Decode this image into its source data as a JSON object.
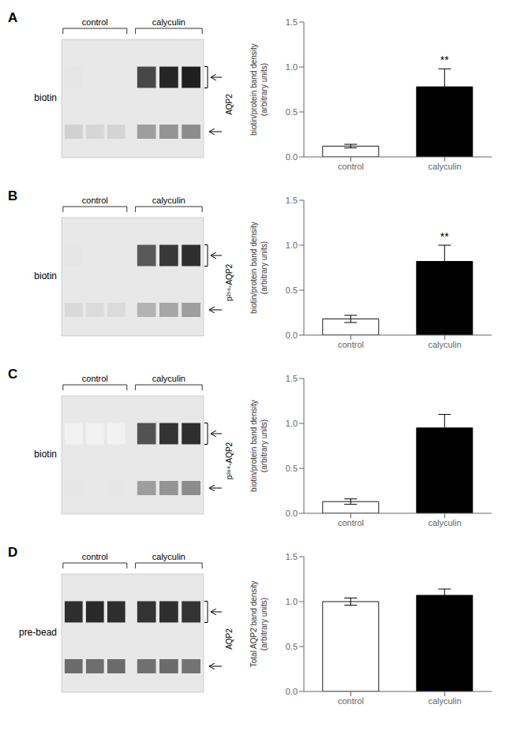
{
  "chart_data": [
    {
      "type": "bar",
      "title": "A",
      "ylabel": "biotin/protein band density\n(arbitrary units)",
      "categories": [
        "control",
        "calyculin"
      ],
      "values": [
        0.12,
        0.78
      ],
      "errors": [
        0.02,
        0.2
      ],
      "colors": [
        "white",
        "black"
      ],
      "ylim": [
        0,
        1.5
      ],
      "yticks": [
        {
          "value": 0,
          "label": "0.0"
        },
        0.5,
        {
          "value": 1,
          "label": "1.0"
        },
        1.5
      ],
      "grid": false,
      "annotations": [
        {
          "category": "calyculin",
          "text": "**"
        }
      ],
      "blot": {
        "label": "biotin",
        "groups": [
          "control",
          "calyculin"
        ],
        "band_label": "AQP2",
        "color": "#e8e8e8",
        "control_top": [
          0.1,
          0.09,
          0.09
        ],
        "control_bottom": [
          0.18,
          0.16,
          0.17
        ],
        "calyculin_top": [
          0.72,
          0.85,
          0.88
        ],
        "calyculin_bottom": [
          0.38,
          0.42,
          0.45
        ]
      }
    },
    {
      "type": "bar",
      "title": "B",
      "ylabel": "biotin/protein band density\n(arbitrary units)",
      "categories": [
        "control",
        "calyculin"
      ],
      "values": [
        0.18,
        0.82
      ],
      "errors": [
        0.04,
        0.18
      ],
      "colors": [
        "white",
        "black"
      ],
      "ylim": [
        0,
        1.5
      ],
      "yticks": [
        {
          "value": 0,
          "label": "0.0"
        },
        0.5,
        {
          "value": 1,
          "label": "1.0"
        },
        1.5
      ],
      "grid": false,
      "annotations": [
        {
          "category": "calyculin",
          "text": "**"
        }
      ],
      "blot": {
        "label": "biotin",
        "groups": [
          "control",
          "calyculin"
        ],
        "band_label": "p²⁵⁶-AQP2",
        "color": "#e8e8e8",
        "control_top": [
          0.1,
          0.09,
          0.09
        ],
        "control_bottom": [
          0.15,
          0.14,
          0.14
        ],
        "calyculin_top": [
          0.65,
          0.78,
          0.82
        ],
        "calyculin_bottom": [
          0.3,
          0.35,
          0.38
        ]
      }
    },
    {
      "type": "bar",
      "title": "C",
      "ylabel": "biotin/protein band density\n(arbitrary units)",
      "categories": [
        "control",
        "calyculin"
      ],
      "values": [
        0.13,
        0.95
      ],
      "errors": [
        0.03,
        0.15
      ],
      "colors": [
        "white",
        "black"
      ],
      "ylim": [
        0,
        1.5
      ],
      "yticks": [
        {
          "value": 0,
          "label": "0.0"
        },
        0.5,
        {
          "value": 1,
          "label": "1.0"
        },
        1.5
      ],
      "grid": false,
      "blot": {
        "label": "biotin",
        "groups": [
          "control",
          "calyculin"
        ],
        "band_label": "p²⁶⁴-AQP2",
        "color": "#e8e8e8",
        "control_top": [
          0.05,
          0.05,
          0.05
        ],
        "control_bottom": [
          0.1,
          0.09,
          0.1
        ],
        "calyculin_top": [
          0.68,
          0.8,
          0.82
        ],
        "calyculin_bottom": [
          0.38,
          0.42,
          0.45
        ]
      }
    },
    {
      "type": "bar",
      "title": "D",
      "ylabel": "Total AQP2 band density\n(arbitrary units)",
      "categories": [
        "control",
        "calyculin"
      ],
      "values": [
        1.0,
        1.07
      ],
      "errors": [
        0.04,
        0.07
      ],
      "colors": [
        "white",
        "black"
      ],
      "ylim": [
        0,
        1.5
      ],
      "yticks": [
        {
          "value": 0,
          "label": "0.0"
        },
        0.5,
        {
          "value": 1,
          "label": "1.0"
        },
        1.5
      ],
      "grid": false,
      "blot": {
        "label": "pre-bead",
        "groups": [
          "control",
          "calyculin"
        ],
        "band_label": "AQP2",
        "color": "#e8e8e8",
        "control_top": [
          0.82,
          0.84,
          0.82
        ],
        "control_bottom": [
          0.58,
          0.57,
          0.58
        ],
        "calyculin_top": [
          0.8,
          0.82,
          0.8
        ],
        "calyculin_bottom": [
          0.56,
          0.58,
          0.55
        ]
      }
    }
  ]
}
